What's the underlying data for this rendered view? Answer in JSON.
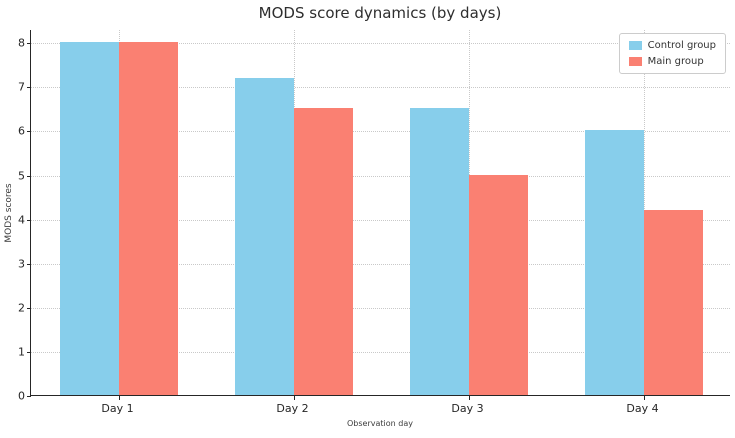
{
  "chart_data": {
    "type": "bar",
    "title": "MODS score dynamics (by days)",
    "xlabel": "Observation day",
    "ylabel": "MODS scores",
    "categories": [
      "Day 1",
      "Day 2",
      "Day 3",
      "Day 4"
    ],
    "series": [
      {
        "name": "Control group",
        "color": "#87CEEB",
        "values": [
          8.0,
          7.2,
          6.5,
          6.0
        ]
      },
      {
        "name": "Main group",
        "color": "#FA8072",
        "values": [
          8.0,
          6.5,
          5.0,
          4.2
        ]
      }
    ],
    "ylim": [
      0,
      8.3
    ],
    "yticks": [
      0,
      1,
      2,
      3,
      4,
      5,
      6,
      7,
      8
    ],
    "grid": true,
    "grid_style": "dotted",
    "legend_position": "upper right",
    "background_color": "#ffffff"
  }
}
